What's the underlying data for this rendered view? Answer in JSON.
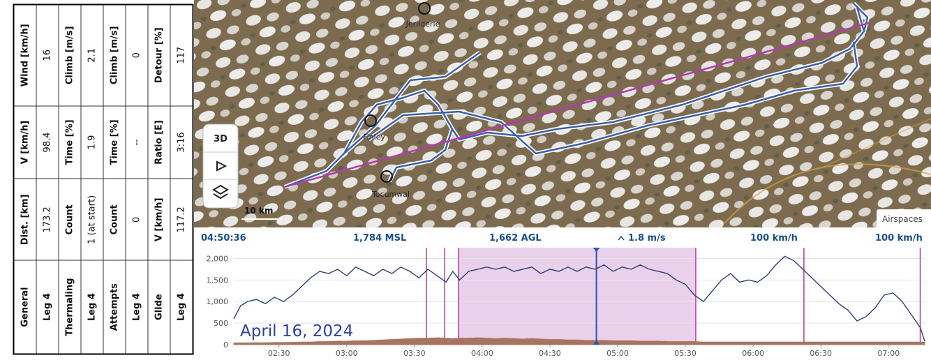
{
  "table": {
    "rows": [
      [
        "General",
        "Dist. [km]",
        "V [km/h]",
        "Wind [km/h]"
      ],
      [
        "Leg 4",
        "173.2",
        "98.4",
        "16"
      ],
      [
        "Thermaling",
        "Count",
        "Time [%]",
        "Climb [m/s]"
      ],
      [
        "Leg 4",
        "1 (at start)",
        "1.9",
        "2.1"
      ],
      [
        "Attempts",
        "Count",
        "Time [%]",
        "Climb [m/s]"
      ],
      [
        "Leg 4",
        "0",
        "--",
        "0"
      ],
      [
        "Glide",
        "V [km/h]",
        "Ratio [E]",
        "Detour [%]"
      ],
      [
        "Leg 4",
        "117.2",
        "3:16",
        "117"
      ]
    ]
  },
  "map": {
    "places": [
      "Jerilderie",
      "Finley",
      "Tocumwal"
    ],
    "scale": "10 km",
    "button": "3D",
    "layer_button": "Airspaces"
  },
  "status": {
    "time": "04:50:36",
    "msl": "1,784 MSL",
    "agl": "1,662 AGL",
    "climb": "1.8 m/s",
    "speed": "100 km/h",
    "speed_right": "100 km/h"
  },
  "chart_data": {
    "type": "line",
    "annotation": "April 16, 2024",
    "x": [
      130,
      133,
      136,
      140,
      144,
      148,
      152,
      156,
      160,
      164,
      168,
      172,
      176,
      180,
      184,
      188,
      192,
      196,
      200,
      204,
      208,
      212,
      216,
      220,
      224,
      227,
      230,
      234,
      238,
      242,
      246,
      250,
      254,
      258,
      262,
      266,
      270,
      274,
      278,
      282,
      286,
      290,
      294,
      298,
      302,
      306,
      310,
      314,
      318,
      322,
      326,
      330,
      334,
      338,
      342,
      346,
      350,
      354,
      358,
      362,
      366,
      370,
      374,
      378,
      382,
      386,
      390,
      394,
      398,
      402,
      406,
      410,
      414,
      418,
      422,
      426,
      430,
      434,
      436
    ],
    "series": [
      {
        "color": "#2b3f7a",
        "values": [
          600,
          900,
          1000,
          1050,
          950,
          1100,
          1000,
          1150,
          1350,
          1550,
          1700,
          1650,
          1750,
          1600,
          1800,
          1700,
          1600,
          1750,
          1650,
          1800,
          1700,
          1550,
          1750,
          1600,
          1450,
          1700,
          1500,
          1700,
          1750,
          1800,
          1750,
          1800,
          1700,
          1750,
          1800,
          1650,
          1750,
          1700,
          1800,
          1700,
          1800,
          1750,
          1850,
          1700,
          1800,
          1750,
          1850,
          1750,
          1700,
          1650,
          1500,
          1400,
          1150,
          1000,
          1250,
          1500,
          1650,
          1450,
          1500,
          1450,
          1600,
          1850,
          2050,
          1950,
          1750,
          1550,
          1350,
          1150,
          950,
          800,
          550,
          650,
          850,
          1150,
          1200,
          1000,
          700,
          400,
          80
        ]
      },
      {
        "color": "#a87462",
        "values": [
          40,
          40,
          40,
          45,
          45,
          50,
          50,
          55,
          60,
          60,
          70,
          70,
          80,
          80,
          90,
          90,
          100,
          110,
          120,
          130,
          140,
          150,
          150,
          160,
          150,
          140,
          150,
          150,
          160,
          150,
          140,
          150,
          140,
          130,
          140,
          130,
          120,
          120,
          110,
          110,
          100,
          100,
          100,
          90,
          90,
          90,
          80,
          80,
          80,
          70,
          70,
          70,
          70,
          60,
          60,
          60,
          60,
          60,
          60,
          60,
          60,
          60,
          60,
          60,
          60,
          60,
          60,
          60,
          60,
          60,
          60,
          60,
          60,
          60,
          60,
          60,
          60,
          60,
          60
        ]
      }
    ],
    "xlim": [
      130,
      436
    ],
    "ylim": [
      0,
      2250
    ],
    "xticks": [
      {
        "value": 150,
        "label": "02:30"
      },
      {
        "value": 180,
        "label": "03:00"
      },
      {
        "value": 210,
        "label": "03:30"
      },
      {
        "value": 240,
        "label": "04:00"
      },
      {
        "value": 270,
        "label": "04:30"
      },
      {
        "value": 300,
        "label": "05:00"
      },
      {
        "value": 330,
        "label": "05:30"
      },
      {
        "value": 360,
        "label": "06:00"
      },
      {
        "value": 390,
        "label": "06:30"
      },
      {
        "value": 420,
        "label": "07:00"
      }
    ],
    "yticks": [
      0,
      500,
      {
        "value": 1000,
        "label": "1,000"
      },
      {
        "value": 1500,
        "label": "1,500"
      },
      {
        "value": 2000,
        "label": "2,000"
      }
    ],
    "shaded": [
      229.5,
      334.6
    ],
    "shade_color": "#e3c4e6",
    "events": [
      215.3,
      223.4,
      229.5,
      334.6,
      382.5,
      434
    ],
    "event_color": "#b03aa8",
    "cursor": 290.6,
    "cursor_color": "#2a57a6"
  }
}
